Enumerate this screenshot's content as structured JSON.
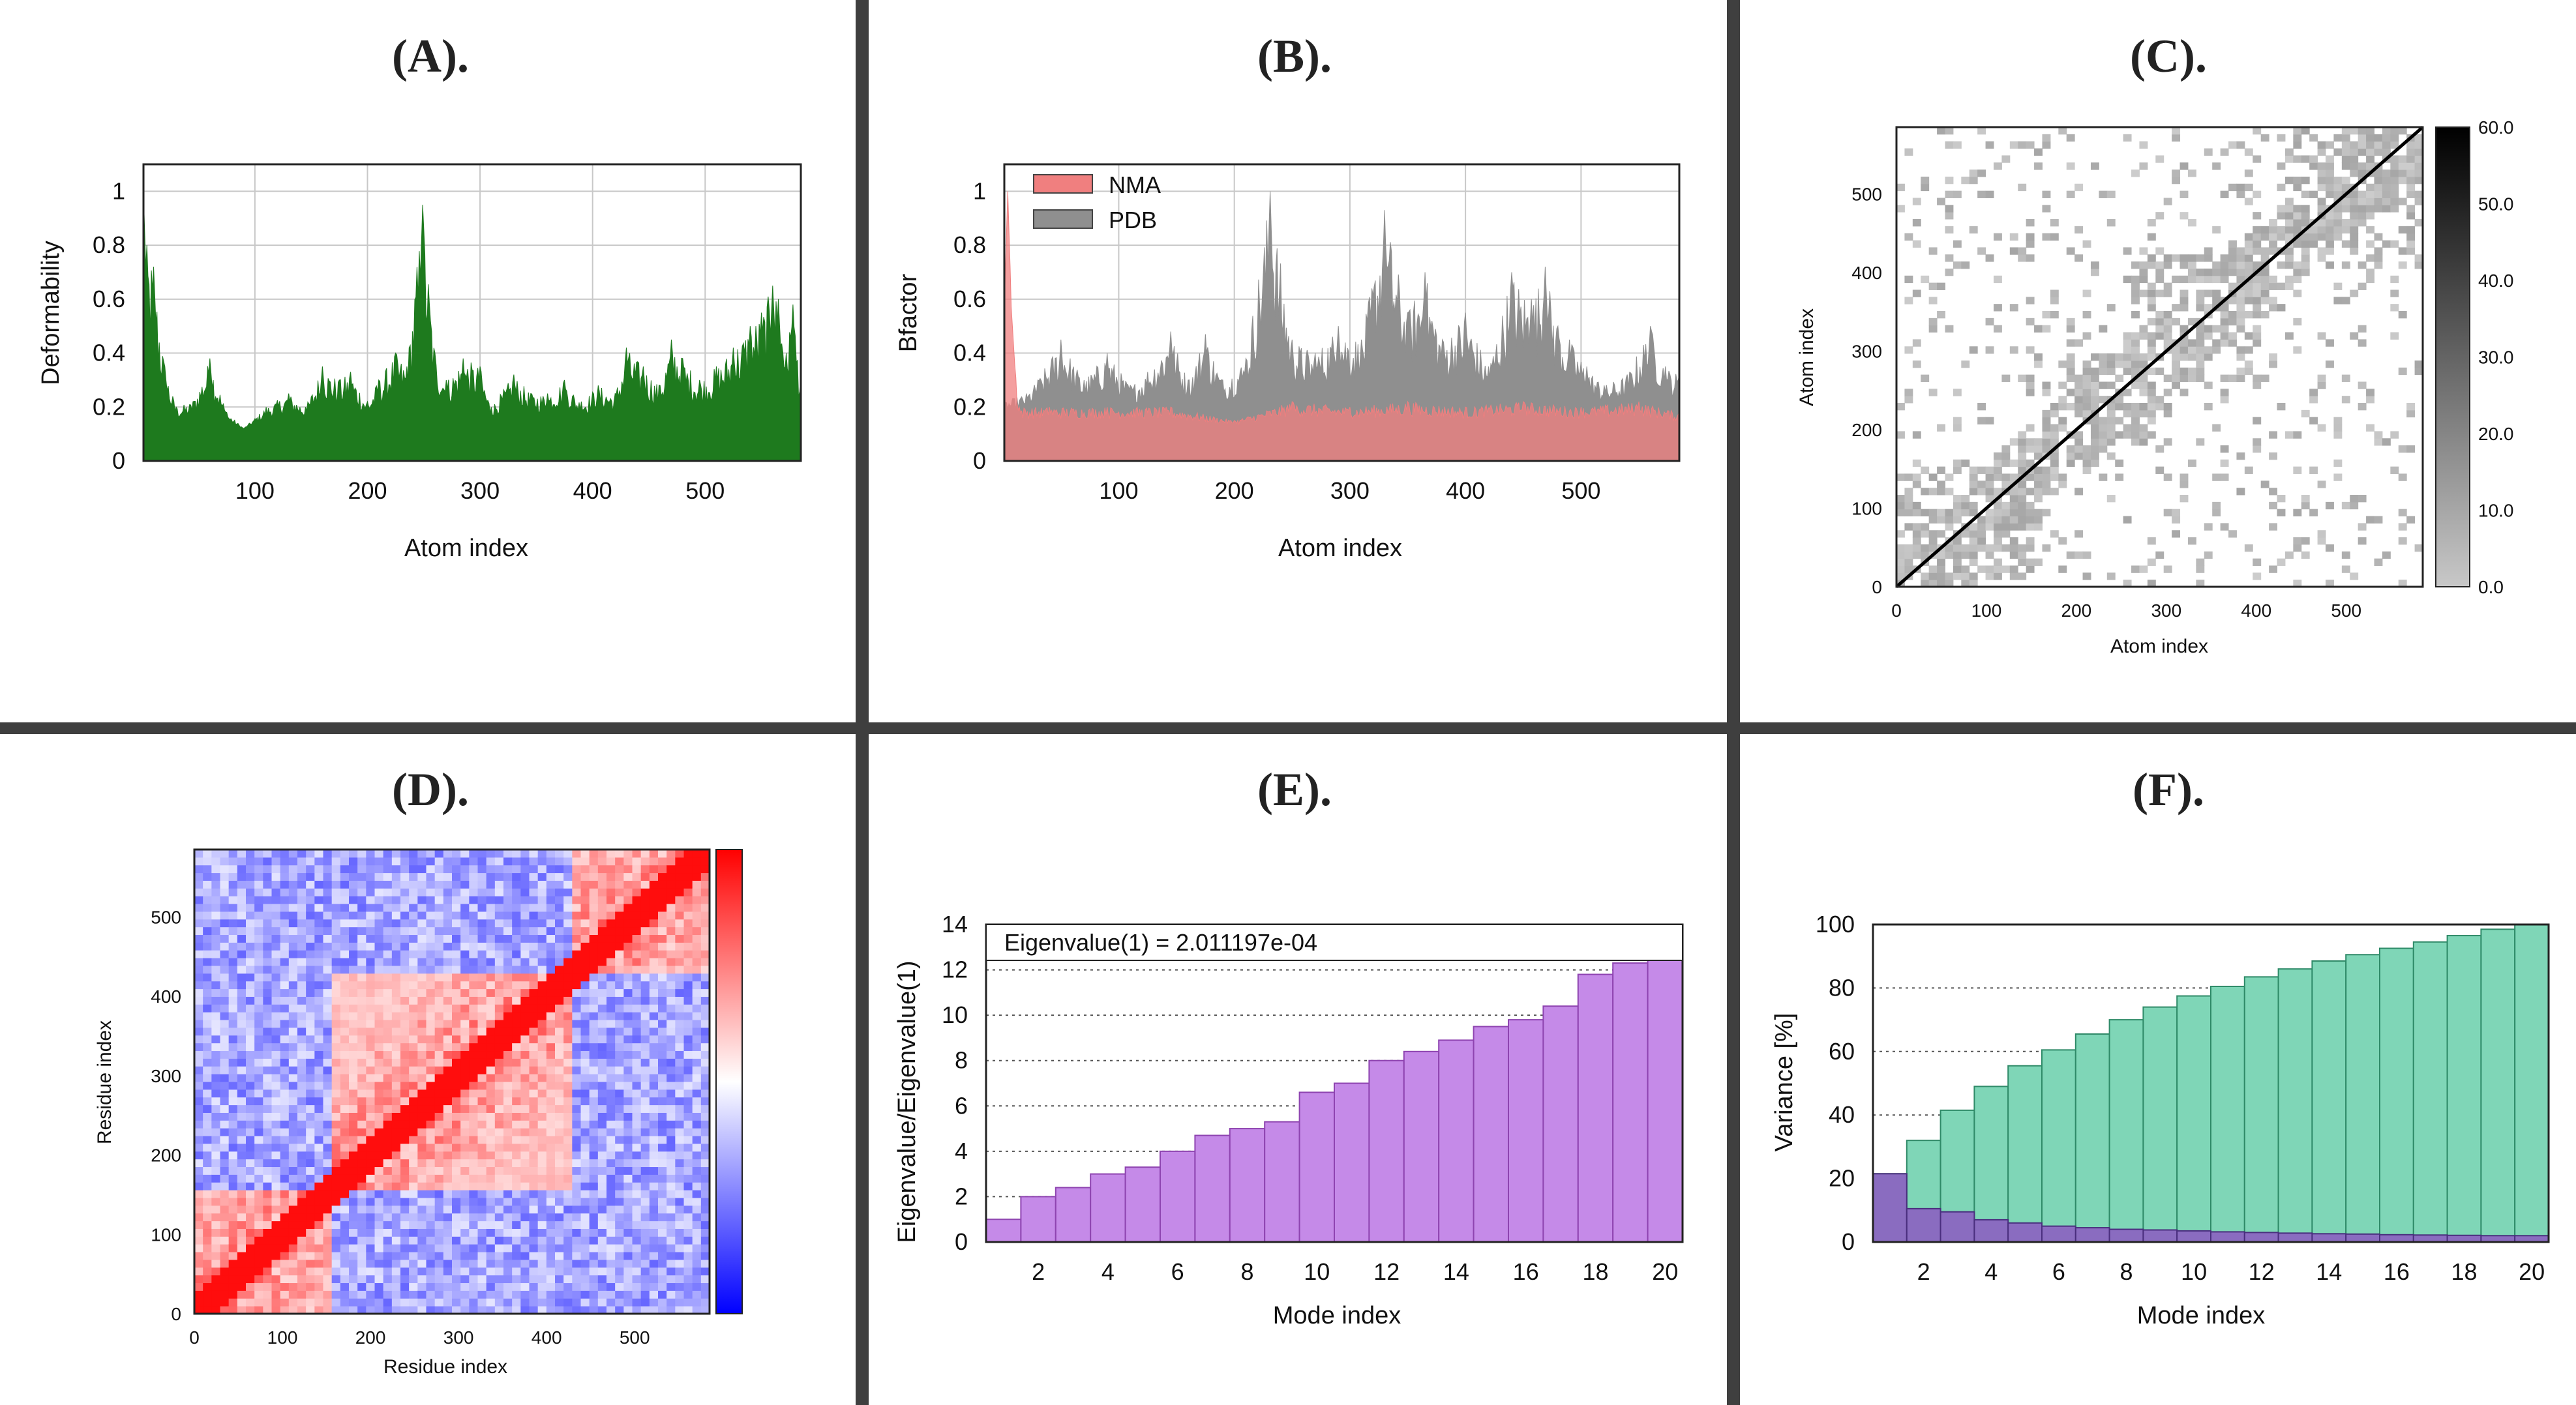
{
  "figure": {
    "colors": {
      "separator": "#3f3f3f",
      "deformability": "#1e7a1e",
      "nma": "#f07f7f",
      "pdb": "#8f8f8f",
      "overlap": "#8b3a3a",
      "eigen": "#c58ae8",
      "eigen_edge": "#8e44b0",
      "variance_cum": "#7fd6b7",
      "variance_cum_edge": "#2f8a68",
      "variance_ind": "#8a6cc0",
      "variance_ind_edge": "#4a2e7e",
      "grid": "#c8c8c8"
    }
  },
  "chart_data": [
    {
      "id": "A",
      "panel_title": "(A).",
      "type": "area",
      "xlabel": "Atom index",
      "ylabel": "Deformability",
      "xlim": [
        1,
        585
      ],
      "ylim": [
        0,
        1.1
      ],
      "xticks": [
        100,
        200,
        300,
        400,
        500
      ],
      "yticks": [
        0,
        0.2,
        0.4,
        0.6,
        0.8,
        1
      ],
      "ytick_labels": [
        "0",
        "0.2",
        "0.4",
        "0.6",
        "0.8",
        "1"
      ],
      "grid": true,
      "series": [
        {
          "name": "Deformability",
          "color": "#1e7a1e",
          "peaks": [
            [
              1,
              1.0
            ],
            [
              4,
              0.8
            ],
            [
              10,
              0.72
            ],
            [
              20,
              0.35
            ],
            [
              30,
              0.2
            ],
            [
              45,
              0.22
            ],
            [
              60,
              0.38
            ],
            [
              75,
              0.18
            ],
            [
              90,
              0.12
            ],
            [
              110,
              0.2
            ],
            [
              130,
              0.25
            ],
            [
              145,
              0.2
            ],
            [
              160,
              0.35
            ],
            [
              175,
              0.3
            ],
            [
              185,
              0.33
            ],
            [
              200,
              0.22
            ],
            [
              210,
              0.3
            ],
            [
              225,
              0.4
            ],
            [
              235,
              0.35
            ],
            [
              249,
              0.95
            ],
            [
              260,
              0.4
            ],
            [
              270,
              0.3
            ],
            [
              285,
              0.38
            ],
            [
              300,
              0.35
            ],
            [
              310,
              0.2
            ],
            [
              330,
              0.32
            ],
            [
              345,
              0.25
            ],
            [
              360,
              0.25
            ],
            [
              375,
              0.3
            ],
            [
              390,
              0.22
            ],
            [
              405,
              0.28
            ],
            [
              420,
              0.25
            ],
            [
              430,
              0.42
            ],
            [
              445,
              0.35
            ],
            [
              460,
              0.28
            ],
            [
              470,
              0.45
            ],
            [
              480,
              0.38
            ],
            [
              495,
              0.3
            ],
            [
              510,
              0.35
            ],
            [
              525,
              0.42
            ],
            [
              540,
              0.5
            ],
            [
              550,
              0.55
            ],
            [
              560,
              0.65
            ],
            [
              565,
              0.6
            ],
            [
              572,
              0.4
            ],
            [
              578,
              0.58
            ],
            [
              585,
              0.3
            ]
          ],
          "baseline": 0.12
        }
      ]
    },
    {
      "id": "B",
      "panel_title": "(B).",
      "type": "area",
      "xlabel": "Atom index",
      "ylabel": "Bfactor",
      "xlim": [
        1,
        585
      ],
      "ylim": [
        0,
        1.1
      ],
      "xticks": [
        100,
        200,
        300,
        400,
        500
      ],
      "yticks": [
        0,
        0.2,
        0.4,
        0.6,
        0.8,
        1
      ],
      "ytick_labels": [
        "0",
        "0.2",
        "0.4",
        "0.6",
        "0.8",
        "1"
      ],
      "grid": true,
      "legend": [
        {
          "label": "NMA",
          "color": "#f07f7f"
        },
        {
          "label": "PDB",
          "color": "#8f8f8f"
        }
      ],
      "series": [
        {
          "name": "PDB",
          "color": "#8f8f8f",
          "peaks": [
            [
              1,
              0.22
            ],
            [
              20,
              0.25
            ],
            [
              30,
              0.3
            ],
            [
              50,
              0.45
            ],
            [
              70,
              0.3
            ],
            [
              90,
              0.4
            ],
            [
              110,
              0.28
            ],
            [
              125,
              0.33
            ],
            [
              145,
              0.48
            ],
            [
              160,
              0.3
            ],
            [
              175,
              0.47
            ],
            [
              190,
              0.3
            ],
            [
              210,
              0.38
            ],
            [
              231,
              1.0
            ],
            [
              250,
              0.45
            ],
            [
              270,
              0.4
            ],
            [
              290,
              0.5
            ],
            [
              310,
              0.45
            ],
            [
              330,
              0.93
            ],
            [
              350,
              0.55
            ],
            [
              365,
              0.7
            ],
            [
              380,
              0.45
            ],
            [
              400,
              0.55
            ],
            [
              420,
              0.35
            ],
            [
              440,
              0.7
            ],
            [
              457,
              0.6
            ],
            [
              469,
              0.72
            ],
            [
              480,
              0.5
            ],
            [
              490,
              0.45
            ],
            [
              505,
              0.35
            ],
            [
              520,
              0.28
            ],
            [
              540,
              0.32
            ],
            [
              560,
              0.5
            ],
            [
              573,
              0.35
            ],
            [
              585,
              0.32
            ]
          ],
          "baseline": 0.15
        },
        {
          "name": "NMA",
          "color": "#f07f7f",
          "peaks": [
            [
              1,
              0.35
            ],
            [
              4,
              1.0
            ],
            [
              8,
              0.5
            ],
            [
              14,
              0.2
            ],
            [
              40,
              0.2
            ],
            [
              90,
              0.2
            ],
            [
              145,
              0.2
            ],
            [
              200,
              0.15
            ],
            [
              250,
              0.22
            ],
            [
              300,
              0.2
            ],
            [
              350,
              0.22
            ],
            [
              400,
              0.2
            ],
            [
              450,
              0.22
            ],
            [
              500,
              0.2
            ],
            [
              550,
              0.22
            ],
            [
              585,
              0.18
            ]
          ],
          "baseline": 0.12
        }
      ]
    },
    {
      "id": "C",
      "panel_title": "(C).",
      "type": "heatmap",
      "xlabel": "Atom index",
      "ylabel": "Atom index",
      "xlim": [
        0,
        585
      ],
      "ylim": [
        0,
        585
      ],
      "xticks": [
        0,
        100,
        200,
        300,
        400,
        500
      ],
      "yticks": [
        0,
        100,
        200,
        300,
        400,
        500
      ],
      "colorbar_ticks": [
        "0.0",
        "10.0",
        "20.0",
        "30.0",
        "40.0",
        "50.0",
        "60.0"
      ],
      "colorbar_range": [
        0,
        60
      ],
      "blocks": [
        [
          0,
          160
        ],
        [
          180,
          300
        ],
        [
          260,
          420
        ],
        [
          420,
          585
        ]
      ],
      "description_values": "distance fluctuation map; diagonal line from (0,0) to (585,585)"
    },
    {
      "id": "D",
      "panel_title": "(D).",
      "type": "heatmap",
      "xlabel": "Residue index",
      "ylabel": "Residue index",
      "xlim": [
        0,
        585
      ],
      "ylim": [
        0,
        585
      ],
      "xticks": [
        0,
        100,
        200,
        300,
        400,
        500
      ],
      "yticks": [
        0,
        100,
        200,
        300,
        400,
        500
      ],
      "colorbar_range": [
        -1,
        1
      ],
      "blocks": [
        [
          0,
          160
        ],
        [
          160,
          430
        ],
        [
          430,
          585
        ]
      ]
    },
    {
      "id": "E",
      "panel_title": "(E).",
      "type": "bar",
      "xlabel": "Mode index",
      "ylabel": "Eigenvalue/Eigenvalue(1)",
      "annotation": "Eigenvalue(1) = 2.011197e-04",
      "categories": [
        1,
        2,
        3,
        4,
        5,
        6,
        7,
        8,
        9,
        10,
        11,
        12,
        13,
        14,
        15,
        16,
        17,
        18,
        19,
        20
      ],
      "xtick_labels": [
        "2",
        "4",
        "6",
        "8",
        "10",
        "12",
        "14",
        "16",
        "18",
        "20"
      ],
      "values": [
        1.0,
        2.0,
        2.4,
        3.0,
        3.3,
        4.0,
        4.7,
        5.0,
        5.3,
        6.6,
        7.0,
        8.0,
        8.4,
        8.9,
        9.5,
        9.8,
        10.4,
        11.8,
        12.3,
        12.5
      ],
      "ylim": [
        0,
        14
      ],
      "yticks": [
        0,
        2,
        4,
        6,
        8,
        10,
        12,
        14
      ],
      "grid": true
    },
    {
      "id": "F",
      "panel_title": "(F).",
      "type": "bar",
      "xlabel": "Mode index",
      "ylabel": "Variance [%]",
      "categories": [
        1,
        2,
        3,
        4,
        5,
        6,
        7,
        8,
        9,
        10,
        11,
        12,
        13,
        14,
        15,
        16,
        17,
        18,
        19,
        20
      ],
      "xtick_labels": [
        "2",
        "4",
        "6",
        "8",
        "10",
        "12",
        "14",
        "16",
        "18",
        "20"
      ],
      "series": [
        {
          "name": "cumulative",
          "values": [
            21.5,
            32,
            41.5,
            49,
            55.5,
            60.5,
            65.5,
            70,
            74,
            77.5,
            80.5,
            83.5,
            86,
            88.5,
            90.5,
            92.5,
            94.5,
            96.5,
            98.5,
            100
          ]
        },
        {
          "name": "individual",
          "values": [
            21.5,
            10.5,
            9.5,
            7,
            6,
            5,
            4.5,
            4,
            3.8,
            3.5,
            3.2,
            3,
            2.8,
            2.6,
            2.5,
            2.3,
            2.2,
            2.1,
            2,
            2
          ]
        }
      ],
      "ylim": [
        0,
        100
      ],
      "yticks": [
        0,
        20,
        40,
        60,
        80,
        100
      ],
      "grid": true
    }
  ]
}
